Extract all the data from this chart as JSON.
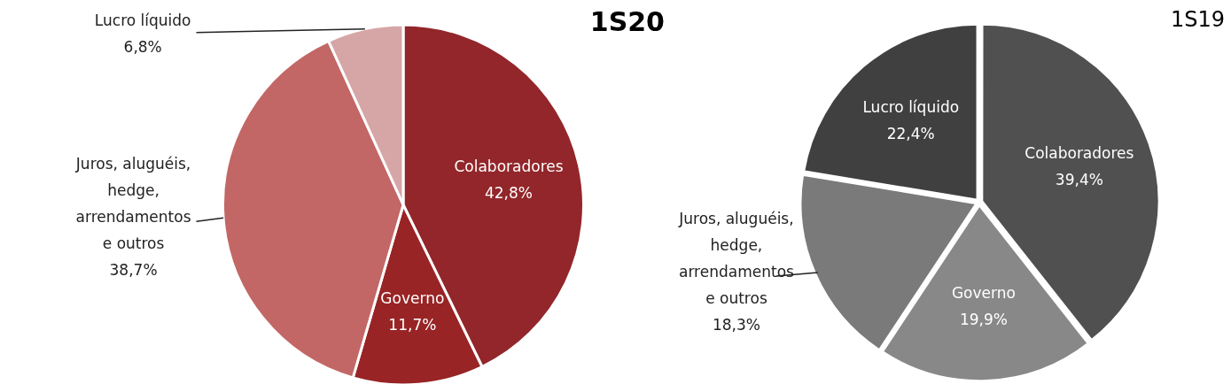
{
  "chart_data": [
    {
      "type": "pie",
      "title": "1S20",
      "categories": [
        "Colaboradores",
        "Governo",
        "Juros, aluguéis, hedge, arrendamentos e outros",
        "Lucro líquido"
      ],
      "values": [
        42.8,
        11.7,
        38.7,
        6.8
      ],
      "colors": [
        "#92262a",
        "#982425",
        "#c26766",
        "#d6a6a7"
      ],
      "value_labels": [
        "42,8%",
        "11,7%",
        "38,7%",
        "6,8%"
      ],
      "legend": false
    },
    {
      "type": "pie",
      "title": "1S19",
      "categories": [
        "Colaboradores",
        "Governo",
        "Juros, aluguéis, hedge, arrendamentos e outros",
        "Lucro líquido"
      ],
      "values": [
        39.4,
        19.9,
        18.3,
        22.4
      ],
      "colors": [
        "#505050",
        "#888888",
        "#7a7a7a",
        "#404040"
      ],
      "value_labels": [
        "39,4%",
        "19,9%",
        "18,3%",
        "22,4%"
      ],
      "legend": false
    }
  ]
}
